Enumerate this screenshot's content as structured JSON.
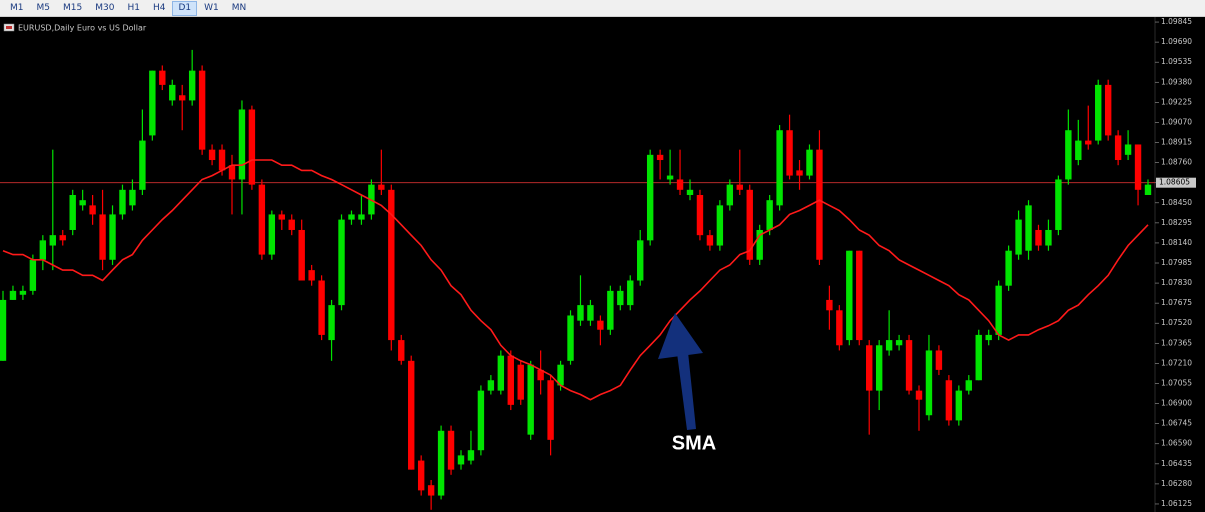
{
  "toolbar": {
    "buttons": [
      "M1",
      "M5",
      "M15",
      "M30",
      "H1",
      "H4",
      "D1",
      "W1",
      "MN"
    ],
    "active": "D1"
  },
  "chart_data": {
    "type": "candlestick",
    "title": "EURUSD,Daily  Euro vs US Dollar",
    "annotation": "SMA",
    "up_color": "#00e400",
    "down_color": "#ff0000",
    "ylim": [
      1.06063,
      1.09884
    ],
    "yticks": [
      1.09845,
      {
        "value": 1.0969,
        "label": "1.09690"
      },
      1.09535,
      {
        "value": 1.0938,
        "label": "1.09380"
      },
      1.09225,
      {
        "value": 1.0907,
        "label": "1.09070"
      },
      1.08915,
      {
        "value": 1.0876,
        "label": "1.08760"
      },
      1.08605,
      {
        "value": 1.0845,
        "label": "1.08450"
      },
      1.08295,
      {
        "value": 1.0814,
        "label": "1.08140"
      },
      1.07985,
      {
        "value": 1.0783,
        "label": "1.07830"
      },
      1.07675,
      {
        "value": 1.0752,
        "label": "1.07520"
      },
      1.07365,
      {
        "value": 1.0721,
        "label": "1.07210"
      },
      1.07055,
      {
        "value": 1.069,
        "label": "1.06900"
      },
      1.06745,
      {
        "value": 1.0659,
        "label": "1.06590"
      },
      1.06435,
      {
        "value": 1.0628,
        "label": "1.06280"
      },
      1.06125
    ],
    "current_price": 1.08605,
    "current_price_color": "#d03030",
    "open": [
      1.0723,
      1.077,
      1.0774,
      1.0777,
      1.0801,
      1.0812,
      1.082,
      1.0824,
      1.0843,
      1.0843,
      1.0836,
      1.0801,
      1.0836,
      1.0843,
      1.0855,
      1.0897,
      1.0947,
      1.0924,
      1.0928,
      1.0924,
      1.0947,
      1.0886,
      1.0886,
      1.0874,
      1.0863,
      1.0917,
      1.0859,
      1.0805,
      1.0836,
      1.0832,
      1.0824,
      1.0793,
      1.0785,
      1.0739,
      1.0766,
      1.0832,
      1.0832,
      1.0836,
      1.0859,
      1.0855,
      1.0739,
      1.0723,
      1.0646,
      1.0627,
      1.0619,
      1.0669,
      1.0643,
      1.0646,
      1.0654,
      1.07,
      1.07,
      1.0727,
      1.072,
      1.0666,
      1.0716,
      1.0708,
      1.0704,
      1.0723,
      1.0754,
      1.0754,
      1.0754,
      1.0747,
      1.0766,
      1.0766,
      1.0785,
      1.0816,
      1.0882,
      1.0863,
      1.0863,
      1.0851,
      1.0851,
      1.082,
      1.0812,
      1.0843,
      1.0859,
      1.0855,
      1.0801,
      1.0824,
      1.0843,
      1.0901,
      1.087,
      1.0866,
      1.0886,
      1.077,
      1.0762,
      1.0739,
      1.0808,
      1.0735,
      1.07,
      1.0731,
      1.0735,
      1.0739,
      1.07,
      1.0681,
      1.0731,
      1.0708,
      1.0677,
      1.07,
      1.0708,
      1.0739,
      1.0743,
      1.0781,
      1.0805,
      1.0808,
      1.0824,
      1.0812,
      1.0824,
      1.0863,
      1.0878,
      1.0893,
      1.0893,
      1.0936,
      1.0897,
      1.0882,
      1.089,
      1.0851
    ],
    "high": [
      1.0777,
      1.0781,
      1.0781,
      1.0805,
      1.082,
      1.0886,
      1.0824,
      1.0855,
      1.0855,
      1.0851,
      1.0855,
      1.0843,
      1.0859,
      1.0863,
      1.0917,
      1.0947,
      1.0951,
      1.094,
      1.0936,
      1.0963,
      1.0951,
      1.089,
      1.089,
      1.0882,
      1.0924,
      1.092,
      1.0863,
      1.0839,
      1.0839,
      1.0836,
      1.0832,
      1.0797,
      1.0789,
      1.077,
      1.0836,
      1.0839,
      1.0851,
      1.0863,
      1.0886,
      1.0859,
      1.0743,
      1.0727,
      1.065,
      1.0631,
      1.0673,
      1.0673,
      1.0654,
      1.0669,
      1.0704,
      1.0712,
      1.0731,
      1.0731,
      1.0723,
      1.0723,
      1.0731,
      1.0712,
      1.0723,
      1.0762,
      1.0789,
      1.077,
      1.0758,
      1.0781,
      1.0781,
      1.0789,
      1.0824,
      1.0886,
      1.0886,
      1.0886,
      1.0886,
      1.0863,
      1.0855,
      1.0824,
      1.0847,
      1.0863,
      1.0886,
      1.0859,
      1.0828,
      1.0851,
      1.0905,
      1.0913,
      1.0878,
      1.089,
      1.0901,
      1.0781,
      1.0766,
      1.0808,
      1.0808,
      1.0739,
      1.0739,
      1.0762,
      1.0743,
      1.0743,
      1.0704,
      1.0743,
      1.0735,
      1.0712,
      1.0704,
      1.0712,
      1.0747,
      1.0747,
      1.0785,
      1.0812,
      1.0839,
      1.0847,
      1.0828,
      1.0832,
      1.0866,
      1.0917,
      1.0909,
      1.092,
      1.094,
      1.094,
      1.0901,
      1.0901,
      1.089,
      1.0863
    ],
    "low": [
      1.0723,
      1.077,
      1.077,
      1.0774,
      1.0793,
      1.0793,
      1.0812,
      1.082,
      1.0839,
      1.0828,
      1.0793,
      1.0797,
      1.0832,
      1.0839,
      1.0851,
      1.0893,
      1.0932,
      1.092,
      1.0901,
      1.092,
      1.0882,
      1.0874,
      1.0866,
      1.0836,
      1.0836,
      1.0855,
      1.0801,
      1.0801,
      1.0824,
      1.082,
      1.0785,
      1.0781,
      1.0739,
      1.0723,
      1.0762,
      1.0828,
      1.0828,
      1.0832,
      1.0851,
      1.0731,
      1.072,
      1.0639,
      1.0619,
      1.0608,
      1.0616,
      1.0635,
      1.0639,
      1.0643,
      1.065,
      1.0697,
      1.0697,
      1.0685,
      1.0689,
      1.0662,
      1.0697,
      1.065,
      1.07,
      1.072,
      1.075,
      1.075,
      1.0735,
      1.0743,
      1.0762,
      1.0762,
      1.0781,
      1.0812,
      1.0863,
      1.0859,
      1.0851,
      1.0847,
      1.0816,
      1.0808,
      1.0808,
      1.0839,
      1.0851,
      1.0797,
      1.0797,
      1.082,
      1.0839,
      1.0863,
      1.0855,
      1.0863,
      1.0797,
      1.0747,
      1.0731,
      1.0735,
      1.0735,
      1.0666,
      1.0685,
      1.0727,
      1.0731,
      1.0697,
      1.0669,
      1.0677,
      1.0712,
      1.0673,
      1.0673,
      1.0697,
      1.0708,
      1.0735,
      1.0739,
      1.0777,
      1.0801,
      1.0801,
      1.0808,
      1.0808,
      1.082,
      1.0859,
      1.0874,
      1.0886,
      1.089,
      1.0893,
      1.0874,
      1.0878,
      1.0843,
      1.0851
    ],
    "close": [
      1.077,
      1.0777,
      1.0777,
      1.0801,
      1.0816,
      1.082,
      1.0816,
      1.0851,
      1.0847,
      1.0836,
      1.0801,
      1.0836,
      1.0855,
      1.0855,
      1.0893,
      1.0947,
      1.0936,
      1.0936,
      1.0924,
      1.0947,
      1.0886,
      1.0878,
      1.087,
      1.0863,
      1.0917,
      1.0859,
      1.0805,
      1.0836,
      1.0832,
      1.0824,
      1.0785,
      1.0785,
      1.0743,
      1.0766,
      1.0832,
      1.0836,
      1.0836,
      1.0859,
      1.0855,
      1.0739,
      1.0723,
      1.0639,
      1.0623,
      1.0619,
      1.0669,
      1.0639,
      1.065,
      1.0654,
      1.07,
      1.0708,
      1.0727,
      1.0689,
      1.0693,
      1.072,
      1.0708,
      1.0662,
      1.072,
      1.0758,
      1.0766,
      1.0766,
      1.0747,
      1.0777,
      1.0777,
      1.0785,
      1.0816,
      1.0882,
      1.0878,
      1.0866,
      1.0855,
      1.0855,
      1.082,
      1.0812,
      1.0843,
      1.0859,
      1.0855,
      1.0801,
      1.0824,
      1.0847,
      1.0901,
      1.0866,
      1.0866,
      1.0886,
      1.0801,
      1.0762,
      1.0735,
      1.0808,
      1.0739,
      1.07,
      1.0735,
      1.0739,
      1.0739,
      1.07,
      1.0693,
      1.0731,
      1.0716,
      1.0677,
      1.07,
      1.0708,
      1.0743,
      1.0743,
      1.0781,
      1.0808,
      1.0832,
      1.0843,
      1.0812,
      1.0824,
      1.0863,
      1.0901,
      1.0893,
      1.089,
      1.0936,
      1.0897,
      1.0878,
      1.089,
      1.0855,
      1.0859
    ],
    "sma": {
      "color": "#ff1a1a",
      "values": [
        1.0808,
        1.0805,
        1.0805,
        1.0801,
        1.0801,
        1.0797,
        1.0793,
        1.0793,
        1.0789,
        1.0789,
        1.0785,
        1.0793,
        1.0801,
        1.0805,
        1.0816,
        1.0824,
        1.0832,
        1.0839,
        1.0847,
        1.0855,
        1.0863,
        1.0866,
        1.087,
        1.0874,
        1.0874,
        1.0878,
        1.0878,
        1.0878,
        1.0874,
        1.0874,
        1.087,
        1.087,
        1.0866,
        1.0863,
        1.0859,
        1.0855,
        1.0851,
        1.0847,
        1.0843,
        1.0836,
        1.0828,
        1.082,
        1.0812,
        1.0801,
        1.0793,
        1.0781,
        1.0774,
        1.0762,
        1.0754,
        1.0747,
        1.0735,
        1.0727,
        1.0723,
        1.072,
        1.0716,
        1.0712,
        1.0704,
        1.07,
        1.0697,
        1.0693,
        1.0697,
        1.07,
        1.0704,
        1.0716,
        1.0727,
        1.0735,
        1.0743,
        1.0754,
        1.0762,
        1.077,
        1.0777,
        1.0785,
        1.0793,
        1.0797,
        1.0805,
        1.0808,
        1.082,
        1.0824,
        1.0828,
        1.0836,
        1.0839,
        1.0843,
        1.0847,
        1.0843,
        1.0839,
        1.0832,
        1.0824,
        1.082,
        1.0812,
        1.0808,
        1.0801,
        1.0797,
        1.0793,
        1.0789,
        1.0785,
        1.0781,
        1.0774,
        1.077,
        1.0762,
        1.0754,
        1.0743,
        1.0739,
        1.0743,
        1.0743,
        1.0747,
        1.075,
        1.0754,
        1.0762,
        1.0766,
        1.0774,
        1.0781,
        1.0789,
        1.0801,
        1.0812,
        1.082,
        1.0828
      ]
    }
  }
}
